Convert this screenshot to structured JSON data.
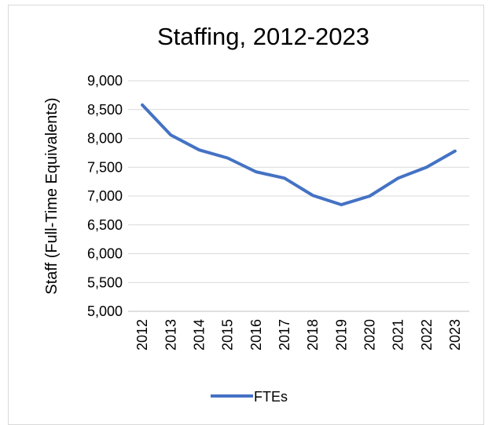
{
  "chart_data": {
    "type": "line",
    "title": "Staffing, 2012-2023",
    "xlabel": "",
    "ylabel": "Staff (Full-Time Equivalents)",
    "categories": [
      "2012",
      "2013",
      "2014",
      "2015",
      "2016",
      "2017",
      "2018",
      "2019",
      "2020",
      "2021",
      "2022",
      "2023"
    ],
    "series": [
      {
        "name": "FTEs",
        "color": "#4472c4",
        "values": [
          8580,
          8060,
          7800,
          7660,
          7420,
          7310,
          7010,
          6850,
          7000,
          7310,
          7500,
          7780
        ]
      }
    ],
    "ylim": [
      5000,
      9000
    ],
    "yticks": [
      "5,000",
      "5,500",
      "6,000",
      "6,500",
      "7,000",
      "7,500",
      "8,000",
      "8,500",
      "9,000"
    ],
    "grid": true,
    "legend_position": "bottom"
  }
}
